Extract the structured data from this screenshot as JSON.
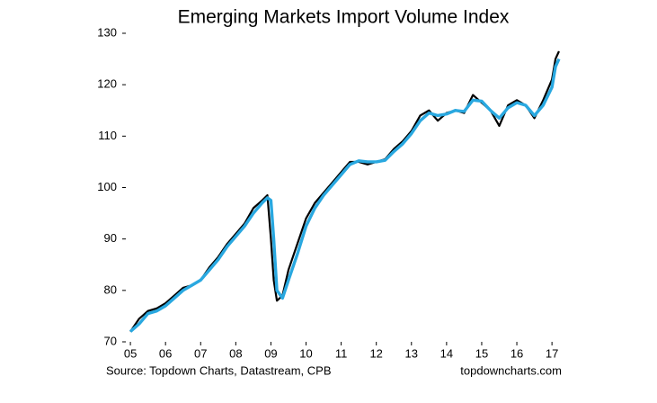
{
  "chart_data": {
    "type": "line",
    "title": "Emerging Markets Import Volume Index",
    "source": "Source: Topdown Charts, Datastream, CPB",
    "credit": "topdowncharts.com",
    "x": [
      2005,
      2005.25,
      2005.5,
      2005.75,
      2006,
      2006.25,
      2006.5,
      2006.75,
      2007,
      2007.25,
      2007.5,
      2007.75,
      2008,
      2008.25,
      2008.5,
      2008.75,
      2008.9,
      2009,
      2009.08,
      2009.17,
      2009.33,
      2009.5,
      2009.75,
      2010,
      2010.25,
      2010.5,
      2010.75,
      2011,
      2011.25,
      2011.5,
      2011.75,
      2012,
      2012.25,
      2012.5,
      2012.75,
      2013,
      2013.25,
      2013.5,
      2013.75,
      2014,
      2014.25,
      2014.5,
      2014.75,
      2015,
      2015.25,
      2015.5,
      2015.75,
      2016,
      2016.25,
      2016.5,
      2016.75,
      2017,
      2017.1,
      2017.2
    ],
    "series": [
      {
        "color": "#000000",
        "values": [
          72,
          74.5,
          76,
          76.5,
          77.5,
          79,
          80.5,
          81,
          82,
          84.5,
          86.5,
          89,
          91,
          93,
          96,
          97.5,
          98.5,
          90,
          82,
          78,
          79,
          84,
          89,
          94,
          97,
          99,
          101,
          103,
          105,
          105,
          104.5,
          105,
          105.5,
          107.5,
          109,
          111,
          114,
          115,
          113,
          114.5,
          115,
          114.5,
          118,
          116.5,
          115,
          112,
          116,
          117,
          116,
          113.5,
          117,
          121,
          125,
          126.5
        ]
      },
      {
        "color": "#29a8e0",
        "values": [
          72,
          73.5,
          75.5,
          76,
          77,
          78.5,
          80,
          81,
          82,
          84,
          86,
          88.5,
          90.5,
          92.5,
          95,
          97,
          98,
          97.5,
          90,
          80,
          78.5,
          82,
          87,
          92.5,
          96,
          98.5,
          100.5,
          102.5,
          104.5,
          105.2,
          105,
          105,
          105.3,
          107,
          108.5,
          110.5,
          113,
          114.5,
          114,
          114.3,
          115,
          114.8,
          117,
          116.8,
          115,
          113.5,
          115.5,
          116.5,
          116,
          114,
          116,
          119.5,
          123.5,
          125
        ]
      }
    ],
    "xlim": [
      2004.87,
      2017.15
    ],
    "xticks": [
      {
        "value": 2005,
        "label": "05"
      },
      {
        "value": 2006,
        "label": "06"
      },
      {
        "value": 2007,
        "label": "07"
      },
      {
        "value": 2008,
        "label": "08"
      },
      {
        "value": 2009,
        "label": "09"
      },
      {
        "value": 2010,
        "label": "10"
      },
      {
        "value": 2011,
        "label": "11"
      },
      {
        "value": 2012,
        "label": "12"
      },
      {
        "value": 2013,
        "label": "13"
      },
      {
        "value": 2014,
        "label": "14"
      },
      {
        "value": 2015,
        "label": "15"
      },
      {
        "value": 2016,
        "label": "16"
      },
      {
        "value": 2017,
        "label": "17"
      }
    ],
    "ylim": [
      70,
      130
    ],
    "yticks": [
      70,
      80,
      90,
      100,
      110,
      120,
      130
    ]
  }
}
